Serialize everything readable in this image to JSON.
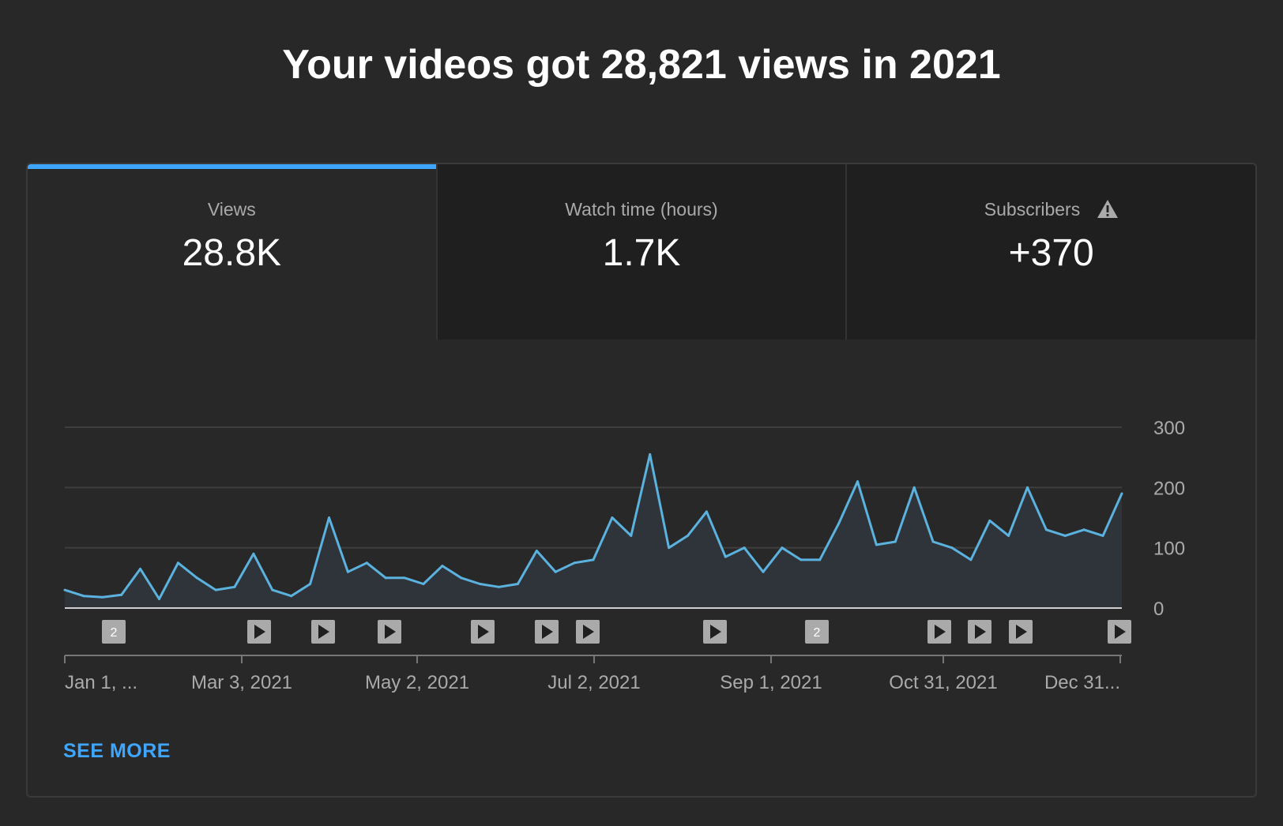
{
  "headline": "Your videos got 28,821 views in 2021",
  "tabs": [
    {
      "label": "Views",
      "value": "28.8K",
      "active": true
    },
    {
      "label": "Watch time (hours)",
      "value": "1.7K",
      "active": false
    },
    {
      "label": "Subscribers",
      "value": "+370",
      "active": false,
      "icon": "warning-icon"
    }
  ],
  "see_more": "SEE MORE",
  "colors": {
    "accent": "#3ea6ff",
    "line": "#5bb2de",
    "area": "#2f343a",
    "background": "#282828"
  },
  "chart_data": {
    "type": "area",
    "y_ticks": [
      "300",
      "200",
      "100",
      "0"
    ],
    "ylim": [
      0,
      300
    ],
    "x_ticks": [
      "Jan 1, ...",
      "Mar 3, 2021",
      "May 2, 2021",
      "Jul 2, 2021",
      "Sep 1, 2021",
      "Oct 31, 2021",
      "Dec 31..."
    ],
    "grid": true,
    "x": [
      "Jan 1, 2021",
      "Jan 8, 2021",
      "Jan 15, 2021",
      "Jan 22, 2021",
      "Jan 29, 2021",
      "Feb 5, 2021",
      "Feb 12, 2021",
      "Feb 19, 2021",
      "Feb 26, 2021",
      "Mar 3, 2021",
      "Mar 10, 2021",
      "Mar 17, 2021",
      "Mar 24, 2021",
      "Mar 31, 2021",
      "Apr 3, 2021",
      "Apr 10, 2021",
      "Apr 17, 2021",
      "Apr 24, 2021",
      "May 2, 2021",
      "May 9, 2021",
      "May 16, 2021",
      "May 23, 2021",
      "May 30, 2021",
      "Jun 6, 2021",
      "Jun 13, 2021",
      "Jun 20, 2021",
      "Jun 27, 2021",
      "Jul 2, 2021",
      "Jul 9, 2021",
      "Jul 16, 2021",
      "Jul 23, 2021",
      "Jul 27, 2021",
      "Jul 30, 2021",
      "Aug 3, 2021",
      "Aug 6, 2021",
      "Aug 13, 2021",
      "Aug 20, 2021",
      "Aug 27, 2021",
      "Sep 1, 2021",
      "Sep 8, 2021",
      "Sep 15, 2021",
      "Sep 22, 2021",
      "Sep 29, 2021",
      "Oct 6, 2021",
      "Oct 13, 2021",
      "Oct 20, 2021",
      "Oct 27, 2021",
      "Oct 31, 2021",
      "Nov 7, 2021",
      "Nov 14, 2021",
      "Nov 21, 2021",
      "Nov 28, 2021",
      "Dec 5, 2021",
      "Dec 12, 2021",
      "Dec 19, 2021",
      "Dec 26, 2021",
      "Dec 31, 2021"
    ],
    "series": [
      {
        "values": [
          30,
          20,
          18,
          22,
          65,
          15,
          75,
          50,
          30,
          35,
          90,
          30,
          20,
          40,
          150,
          60,
          75,
          50,
          50,
          40,
          70,
          50,
          40,
          35,
          40,
          95,
          60,
          75,
          80,
          150,
          120,
          255,
          100,
          120,
          160,
          85,
          100,
          60,
          100,
          80,
          80,
          140,
          210,
          105,
          110,
          200,
          110,
          100,
          80,
          145,
          120,
          200,
          130,
          120,
          130,
          120,
          190
        ]
      }
    ],
    "video_markers": [
      "2",
      "",
      "",
      "",
      "",
      "",
      "",
      "",
      "2",
      "",
      "",
      "",
      ""
    ]
  }
}
